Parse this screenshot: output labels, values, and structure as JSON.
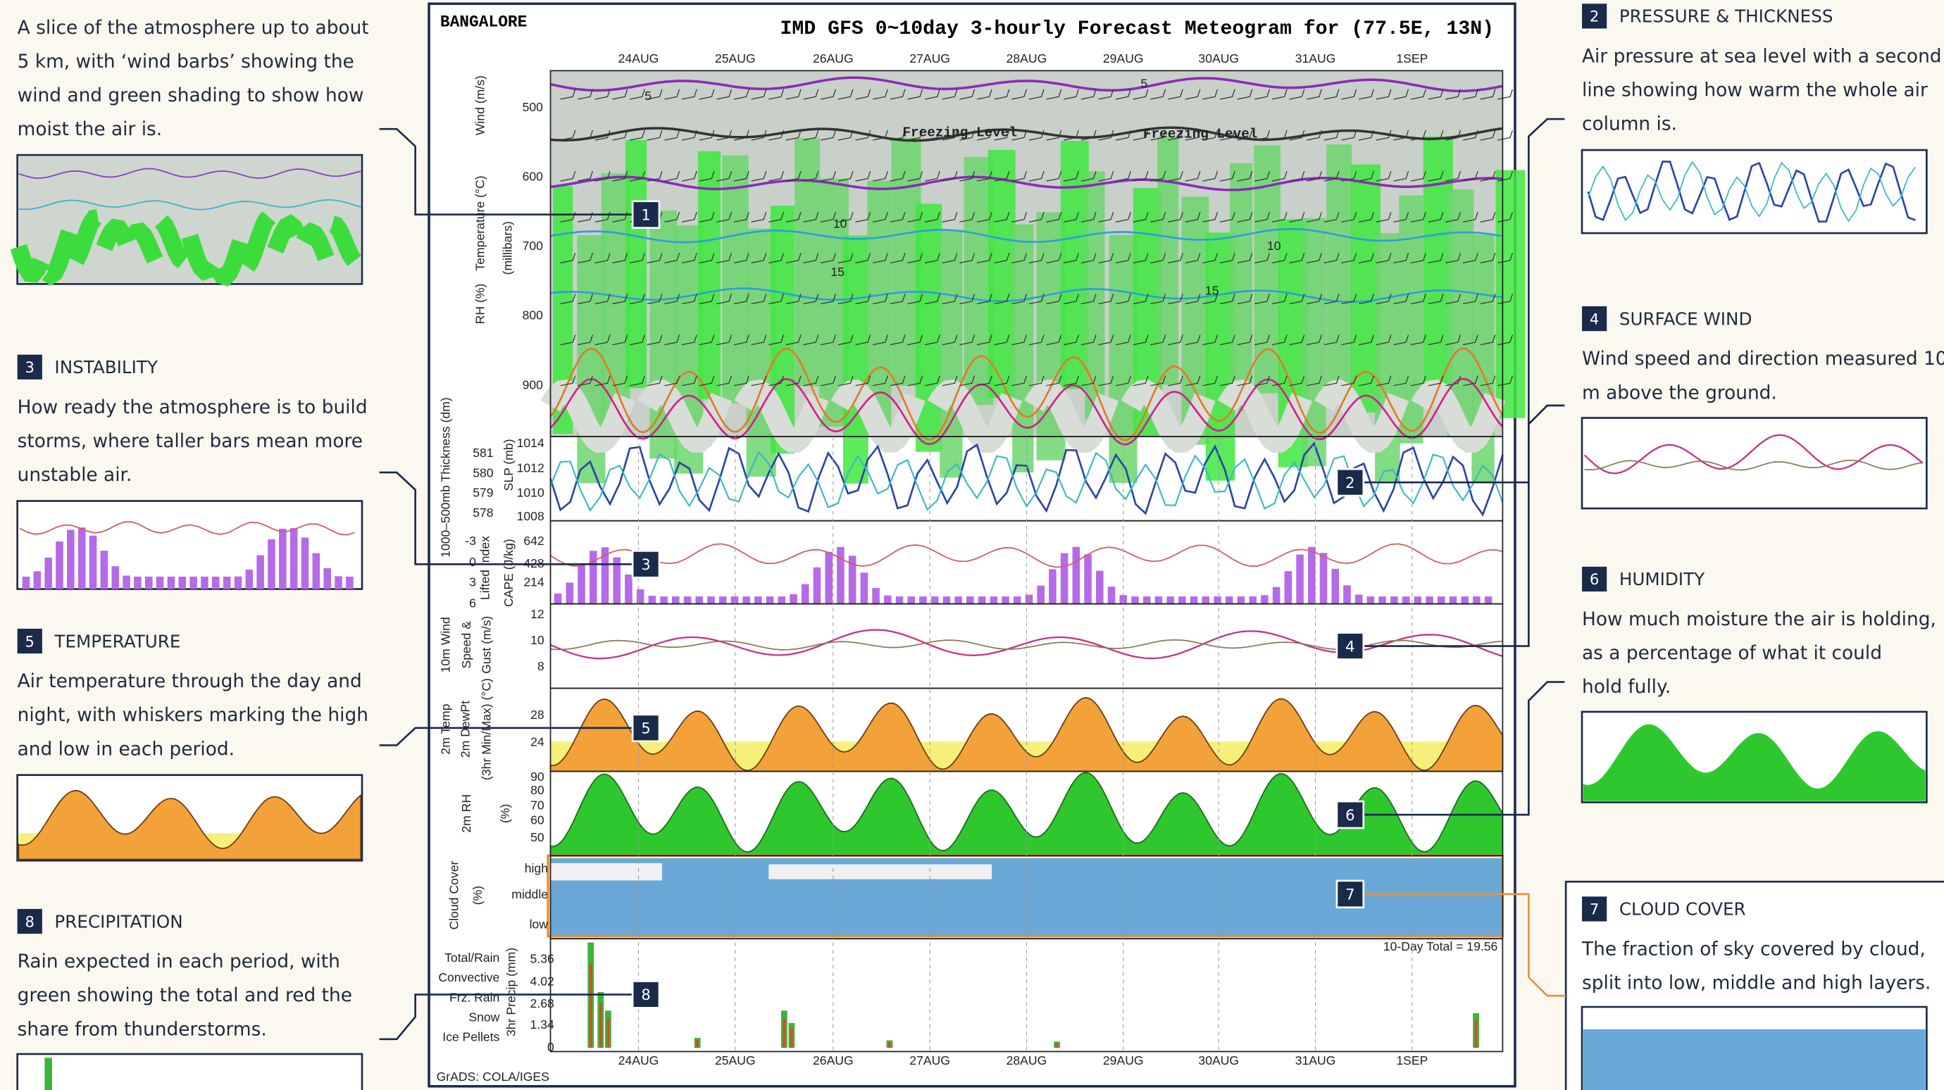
{
  "annotations_left": [
    {
      "number": "1",
      "lines": [
        "A slice of the atmosphere up to about",
        "5 km, with ‘wind barbs’ showing the",
        "wind and green shading to show how",
        "moist the air is."
      ]
    },
    {
      "number": "3",
      "heading": "INSTABILITY",
      "lines": [
        "How ready the atmosphere is to build",
        "storms, where taller bars mean more",
        "unstable air."
      ]
    },
    {
      "number": "5",
      "heading": "TEMPERATURE",
      "lines": [
        "Air temperature through the day and",
        "night, with whiskers marking the high",
        "and low in each period."
      ]
    },
    {
      "number": "8",
      "heading": "PRECIPITATION",
      "lines": [
        "Rain expected in each period, with",
        "green showing the total and red the",
        "share from thunderstorms."
      ]
    }
  ],
  "annotations_right": [
    {
      "number": "2",
      "heading": "PRESSURE & THICKNESS",
      "lines": [
        "Air pressure at sea level with a second",
        "line showing how warm the whole air",
        "column is."
      ]
    },
    {
      "number": "4",
      "heading": "SURFACE WIND",
      "lines": [
        "Wind speed and direction measured 10",
        "m above the ground."
      ]
    },
    {
      "number": "6",
      "heading": "HUMIDITY",
      "lines": [
        "How much moisture the air is holding,",
        "as a percentage of what it could",
        "hold fully."
      ]
    },
    {
      "number": "7",
      "heading": "CLOUD COVER",
      "lines": [
        "The fraction of sky covered by cloud,",
        "split into low, middle and high layers."
      ]
    }
  ],
  "meteogram": {
    "station": "BANGALORE",
    "title": "IMD GFS 0~10day 3-hourly Forecast Meteogram for (77.5E, 13N)",
    "dates": [
      "24AUG",
      "25AUG",
      "26AUG",
      "27AUG",
      "28AUG",
      "29AUG",
      "30AUG",
      "31AUG",
      "1SEP"
    ],
    "upper": {
      "labels": [
        "Wind (m/s)",
        "Temperature (°C)",
        "RH (%)",
        "(millibars)"
      ],
      "ticks": [
        "500",
        "600",
        "700",
        "800",
        "900"
      ],
      "freezing_level": [
        "Freezing Level",
        "Freezing Level"
      ],
      "contours": [
        "5",
        "5",
        "10",
        "10",
        "15",
        "15"
      ]
    },
    "thickness": {
      "labels": [
        "1000–500mb Thickness (dm)",
        "SLP (mb)"
      ],
      "left_ticks": [
        "581",
        "580",
        "579",
        "578"
      ],
      "right_ticks": [
        "1014",
        "1012",
        "1010",
        "1008"
      ]
    },
    "instability": {
      "labels": [
        "Lifted Index",
        "CAPE (J/kg)"
      ],
      "left_ticks": [
        "-3",
        "0",
        "3",
        "6"
      ],
      "right_ticks": [
        "642",
        "428",
        "214"
      ]
    },
    "wind": {
      "labels": [
        "10m Wind",
        "Speed &",
        "Gust (m/s)"
      ],
      "ticks": [
        "12",
        "10",
        "8"
      ]
    },
    "temperature": {
      "labels": [
        "2m Temp",
        "2m DewPt",
        "(3hr Min/Max) (°C)"
      ],
      "ticks": [
        "28",
        "24"
      ]
    },
    "humidity": {
      "labels": [
        "2m RH",
        "(%)"
      ],
      "ticks": [
        "90",
        "80",
        "70",
        "60",
        "50"
      ]
    },
    "cloud": {
      "labels": [
        "Cloud Cover",
        "(%)"
      ],
      "layers": [
        "high",
        "middle",
        "low"
      ]
    },
    "precipitation": {
      "labels": [
        "Total/Rain",
        "Convective",
        "Frz. Rain",
        "Snow",
        "Ice Pellets",
        "3hr Precip (mm)"
      ],
      "ticks": [
        "5.36",
        "4.02",
        "2.68",
        "1.34",
        "0"
      ],
      "total": "10-Day Total = 19.56"
    },
    "credit": "GrADS: COLA/IGES"
  }
}
